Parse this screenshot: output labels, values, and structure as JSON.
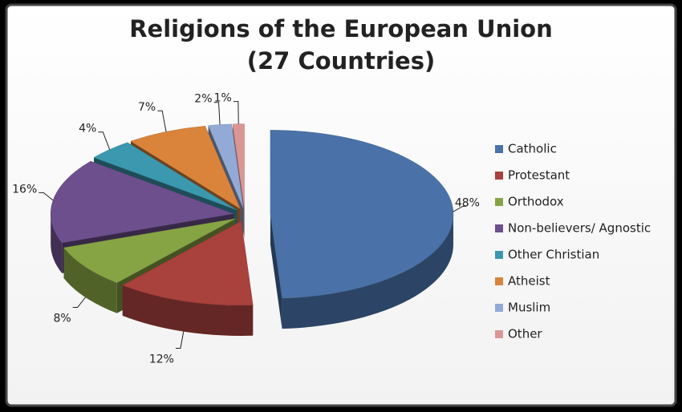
{
  "chart_data": {
    "type": "pie3d",
    "title": "Religions of the European Union",
    "subtitle": "(27 Countries)",
    "categories": [
      "Catholic",
      "Protestant",
      "Orthodox",
      "Non-believers/ Agnostic",
      "Other Christian",
      "Atheist",
      "Muslim",
      "Other"
    ],
    "values": [
      48,
      12,
      8,
      16,
      4,
      7,
      2,
      1
    ],
    "value_labels": [
      "48%",
      "12%",
      "8%",
      "16%",
      "4%",
      "7%",
      "2%",
      "1%"
    ],
    "colors": [
      "#4a72a8",
      "#a9413d",
      "#87a445",
      "#6c4f8c",
      "#3b98ae",
      "#da843b",
      "#93aad6",
      "#da9695"
    ],
    "legend": "right"
  }
}
